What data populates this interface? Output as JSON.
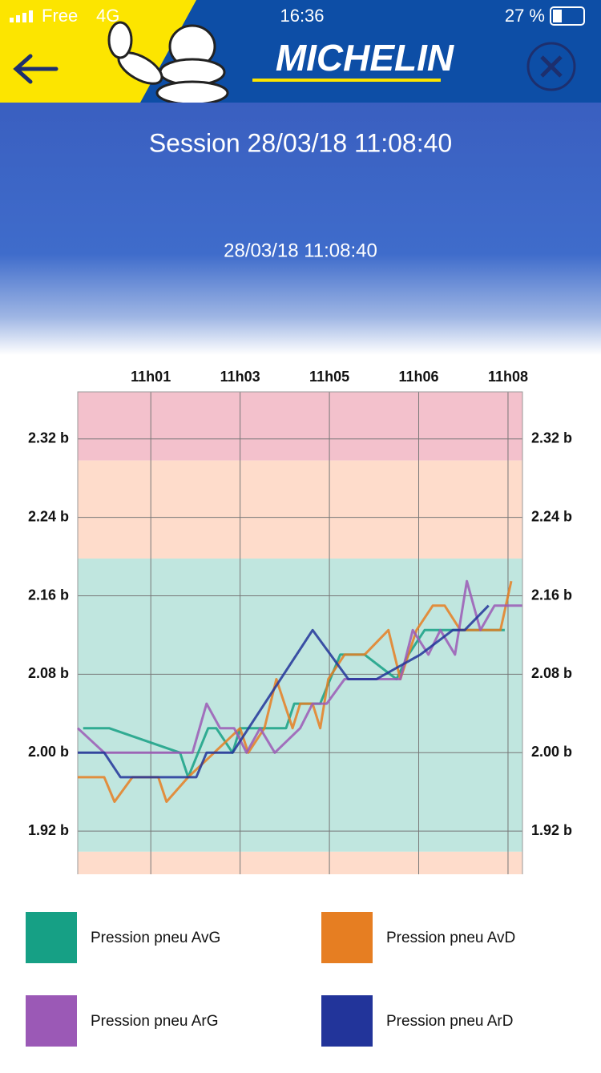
{
  "status_bar": {
    "carrier": "Free",
    "network": "4G",
    "time": "16:36",
    "battery": "27 %"
  },
  "header": {
    "brand": "MICHELIN",
    "title": "Session 28/03/18 11:08:40",
    "subtitle": "28/03/18 11:08:40"
  },
  "chart_data": {
    "type": "line",
    "xlim": [
      0.45,
      8.667
    ],
    "xticks": [
      {
        "value": 1.8,
        "label": "11h01"
      },
      {
        "value": 3.45,
        "label": "11h03"
      },
      {
        "value": 5.1,
        "label": "11h05"
      },
      {
        "value": 6.75,
        "label": "11h06"
      },
      {
        "value": 8.4,
        "label": "11h08"
      }
    ],
    "ylim": [
      1.876,
      2.368
    ],
    "yticks": [
      {
        "value": 1.92,
        "label": "1.92 b"
      },
      {
        "value": 2.0,
        "label": "2.00 b"
      },
      {
        "value": 2.08,
        "label": "2.08 b"
      },
      {
        "value": 2.16,
        "label": "2.16 b"
      },
      {
        "value": 2.24,
        "label": "2.24 b"
      },
      {
        "value": 2.32,
        "label": "2.32 b"
      }
    ],
    "grid": true,
    "zones": [
      {
        "from": 2.298,
        "to": 2.368,
        "color": "#f3c1cc"
      },
      {
        "from": 2.198,
        "to": 2.298,
        "color": "#fedccb"
      },
      {
        "from": 1.899,
        "to": 2.198,
        "color": "#c0e6df"
      },
      {
        "from": 1.876,
        "to": 1.899,
        "color": "#fedccb"
      }
    ],
    "series": [
      {
        "name": "Pression pneu AvG",
        "color": "#16a085",
        "x": [
          0.55,
          1.03,
          2.34,
          2.49,
          2.86,
          3.01,
          3.31,
          3.45,
          4.3,
          4.45,
          4.93,
          5.3,
          5.75,
          6.34,
          6.56,
          6.86,
          7.52,
          8.34
        ],
        "values": [
          2.025,
          2.025,
          2.0,
          1.975,
          2.025,
          2.025,
          2.0,
          2.025,
          2.025,
          2.05,
          2.05,
          2.1,
          2.1,
          2.075,
          2.1,
          2.125,
          2.125,
          2.125
        ]
      },
      {
        "name": "Pression pneu AvD",
        "color": "#e67e22",
        "x": [
          0.45,
          0.94,
          1.13,
          1.46,
          1.94,
          2.09,
          2.49,
          3.45,
          3.6,
          3.9,
          4.12,
          4.42,
          4.56,
          4.79,
          4.93,
          5.08,
          5.38,
          5.75,
          6.19,
          6.41,
          6.71,
          7.01,
          7.23,
          7.52,
          7.85,
          8.26,
          8.46
        ],
        "values": [
          1.975,
          1.975,
          1.95,
          1.975,
          1.975,
          1.95,
          1.975,
          2.025,
          2.0,
          2.025,
          2.075,
          2.025,
          2.05,
          2.05,
          2.025,
          2.075,
          2.1,
          2.1,
          2.125,
          2.075,
          2.125,
          2.15,
          2.15,
          2.125,
          2.125,
          2.125,
          2.175
        ]
      },
      {
        "name": "Pression pneu ArG",
        "color": "#9b59b6",
        "x": [
          0.45,
          0.94,
          2.57,
          2.83,
          3.08,
          3.34,
          3.57,
          3.82,
          4.09,
          4.56,
          4.79,
          5.05,
          5.38,
          6.41,
          6.64,
          6.93,
          7.15,
          7.42,
          7.64,
          7.89,
          8.15,
          8.66
        ],
        "values": [
          2.025,
          2.0,
          2.0,
          2.05,
          2.025,
          2.025,
          2.0,
          2.025,
          2.0,
          2.025,
          2.05,
          2.05,
          2.075,
          2.075,
          2.125,
          2.1,
          2.125,
          2.1,
          2.175,
          2.125,
          2.15,
          2.15
        ]
      },
      {
        "name": "Pression pneu ArD",
        "color": "#22349a",
        "x": [
          0.45,
          0.94,
          1.24,
          2.64,
          2.83,
          3.31,
          4.79,
          5.45,
          5.97,
          6.78,
          7.38,
          7.6,
          8.04
        ],
        "values": [
          2.0,
          2.0,
          1.975,
          1.975,
          2.0,
          2.0,
          2.125,
          2.075,
          2.075,
          2.1,
          2.125,
          2.125,
          2.15
        ]
      }
    ]
  }
}
